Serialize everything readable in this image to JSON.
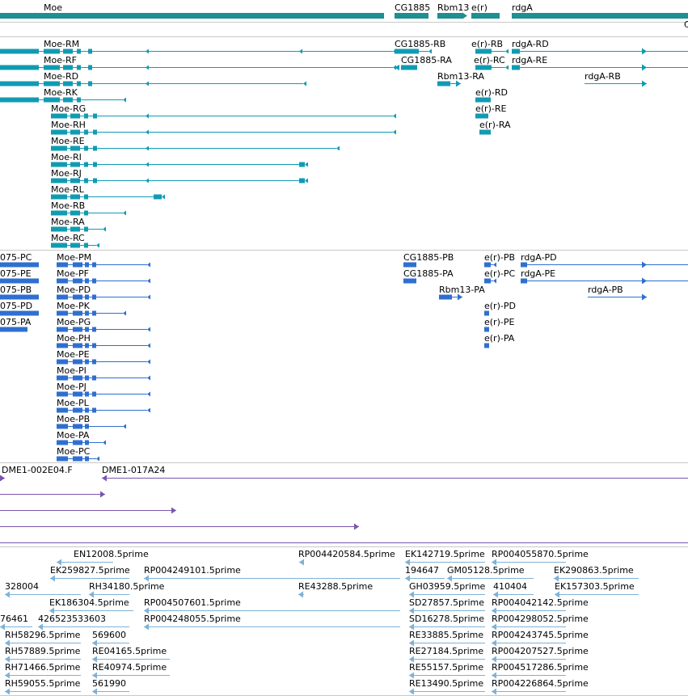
{
  "colors": {
    "genes": "#1e8f92",
    "transcripts_a": "#119bb3",
    "transcripts_b": "#2f6fd0",
    "bac": "#7a55ad",
    "ests": "#7eb2d8",
    "separator": "#c8c8c8"
  },
  "genes": [
    {
      "label": "Moe"
    },
    {
      "label": "CG1885"
    },
    {
      "label": "Rbm13"
    },
    {
      "label": "e(r)"
    },
    {
      "label": "rdgA"
    },
    {
      "label": "C"
    }
  ],
  "transcripts_a": [
    {
      "label": "Moe-RM"
    },
    {
      "label": "Moe-RF"
    },
    {
      "label": "Moe-RD"
    },
    {
      "label": "Moe-RK"
    },
    {
      "label": "Moe-RG"
    },
    {
      "label": "Moe-RH"
    },
    {
      "label": "Moe-RE"
    },
    {
      "label": "Moe-RI"
    },
    {
      "label": "Moe-RJ"
    },
    {
      "label": "Moe-RL"
    },
    {
      "label": "Moe-RB"
    },
    {
      "label": "Moe-RA"
    },
    {
      "label": "Moe-RC"
    },
    {
      "label": "CG1885-RB"
    },
    {
      "label": "CG1885-RA"
    },
    {
      "label": "Rbm13-RA"
    },
    {
      "label": "e(r)-RB"
    },
    {
      "label": "e(r)-RC"
    },
    {
      "label": "e(r)-RD"
    },
    {
      "label": "e(r)-RE"
    },
    {
      "label": "e(r)-RA"
    },
    {
      "label": "rdgA-RD"
    },
    {
      "label": "rdgA-RE"
    },
    {
      "label": "rdgA-RB"
    }
  ],
  "transcripts_b": [
    {
      "label": "075-PC"
    },
    {
      "label": "075-PE"
    },
    {
      "label": "075-PB"
    },
    {
      "label": "075-PD"
    },
    {
      "label": "075-PA"
    },
    {
      "label": "Moe-PM"
    },
    {
      "label": "Moe-PF"
    },
    {
      "label": "Moe-PD"
    },
    {
      "label": "Moe-PK"
    },
    {
      "label": "Moe-PG"
    },
    {
      "label": "Moe-PH"
    },
    {
      "label": "Moe-PE"
    },
    {
      "label": "Moe-PI"
    },
    {
      "label": "Moe-PJ"
    },
    {
      "label": "Moe-PL"
    },
    {
      "label": "Moe-PB"
    },
    {
      "label": "Moe-PA"
    },
    {
      "label": "Moe-PC"
    },
    {
      "label": "CG1885-PB"
    },
    {
      "label": "CG1885-PA"
    },
    {
      "label": "Rbm13-PA"
    },
    {
      "label": "e(r)-PB"
    },
    {
      "label": "e(r)-PC"
    },
    {
      "label": "e(r)-PD"
    },
    {
      "label": "e(r)-PE"
    },
    {
      "label": "e(r)-PA"
    },
    {
      "label": "rdgA-PD"
    },
    {
      "label": "rdgA-PE"
    },
    {
      "label": "rdgA-PB"
    }
  ],
  "bac": [
    {
      "label": "DME1-002E04.F"
    },
    {
      "label": "DME1-017A24"
    }
  ],
  "ests": [
    {
      "label": "EN12008.5prime"
    },
    {
      "label": "RP004420584.5prime"
    },
    {
      "label": "EK142719.5prime"
    },
    {
      "label": "RP004055870.5prime"
    },
    {
      "label": "EK259827.5prime"
    },
    {
      "label": "RP004249101.5prime"
    },
    {
      "label": "194647"
    },
    {
      "label": "GM05128.5prime"
    },
    {
      "label": "EK290863.5prime"
    },
    {
      "label": "328004"
    },
    {
      "label": "RH34180.5prime"
    },
    {
      "label": "RE43288.5prime"
    },
    {
      "label": "GH03959.5prime"
    },
    {
      "label": "410404"
    },
    {
      "label": "EK157303.5prime"
    },
    {
      "label": "EK186304.5prime"
    },
    {
      "label": "RP004507601.5prime"
    },
    {
      "label": "SD27857.5prime"
    },
    {
      "label": "RP004042142.5prime"
    },
    {
      "label": "76461"
    },
    {
      "label": "426523533603"
    },
    {
      "label": "RP004248055.5prime"
    },
    {
      "label": "SD16278.5prime"
    },
    {
      "label": "RP004298052.5prime"
    },
    {
      "label": "RH58296.5prime"
    },
    {
      "label": "569600"
    },
    {
      "label": "RE33885.5prime"
    },
    {
      "label": "RP004243745.5prime"
    },
    {
      "label": "RH57889.5prime"
    },
    {
      "label": "RE04165.5prime"
    },
    {
      "label": "RE27184.5prime"
    },
    {
      "label": "RP004207527.5prime"
    },
    {
      "label": "RH71466.5prime"
    },
    {
      "label": "RE40974.5prime"
    },
    {
      "label": "RE55157.5prime"
    },
    {
      "label": "RP004517286.5prime"
    },
    {
      "label": "RH59055.5prime"
    },
    {
      "label": "561990"
    },
    {
      "label": "RE13490.5prime"
    },
    {
      "label": "RP004226864.5prime"
    }
  ]
}
